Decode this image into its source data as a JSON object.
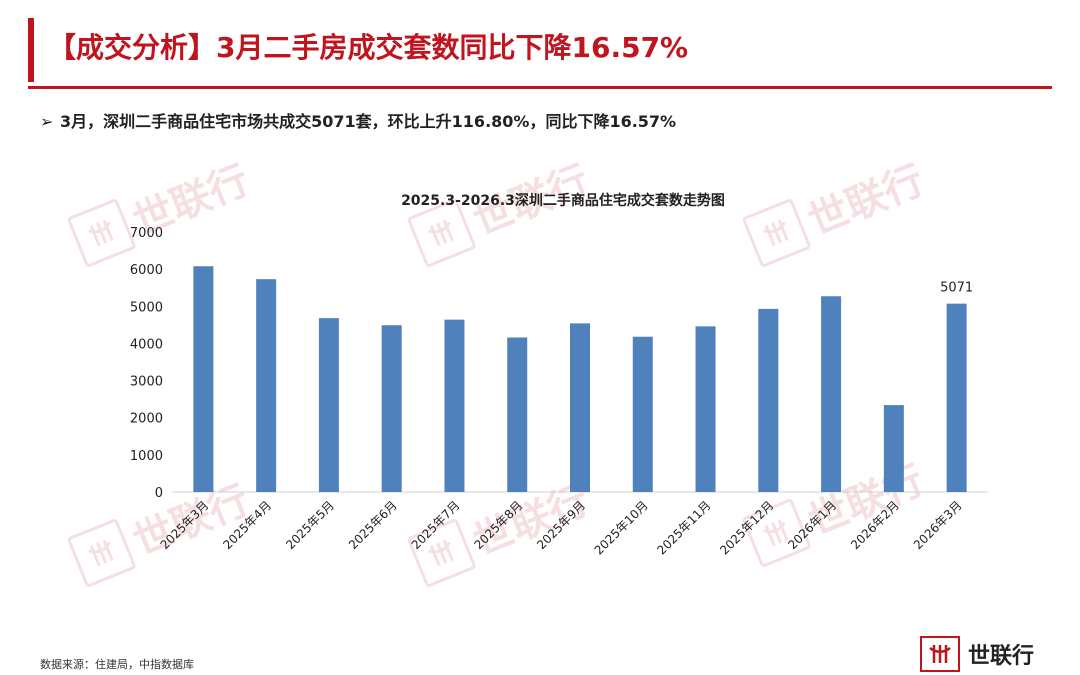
{
  "header": {
    "title": "【成交分析】3月二手房成交套数同比下降16.57%",
    "bullet": "3月，深圳二手商品住宅市场共成交5071套，环比上升116.80%，同比下降16.57%",
    "bullet_marker": "➢"
  },
  "colors": {
    "accent": "#c0141e",
    "bar": "#4f81bd"
  },
  "watermark": {
    "text": "世联行",
    "icon": "shilianhang-logo-icon"
  },
  "chart_data": {
    "type": "bar",
    "title": "2025.3-2026.3深圳二手商品住宅成交套数走势图",
    "xlabel": "",
    "ylabel": "",
    "ylim": [
      0,
      7000
    ],
    "yticks": [
      0,
      1000,
      2000,
      3000,
      4000,
      5000,
      6000,
      7000
    ],
    "categories": [
      "2025年3月",
      "2025年4月",
      "2025年5月",
      "2025年6月",
      "2025年7月",
      "2025年8月",
      "2025年9月",
      "2025年10月",
      "2025年11月",
      "2025年12月",
      "2026年1月",
      "2026年2月",
      "2026年3月"
    ],
    "series": [
      {
        "values": [
          6078,
          5730,
          4680,
          4490,
          4640,
          4160,
          4540,
          4180,
          4460,
          4930,
          5270,
          2339,
          5071
        ]
      }
    ],
    "data_labels": [
      {
        "category": "2026年3月",
        "text": "5071"
      }
    ],
    "grid": false,
    "legend": "none"
  },
  "footer": {
    "source": "数据来源：住建局，中指数据库",
    "brand": "世联行"
  }
}
